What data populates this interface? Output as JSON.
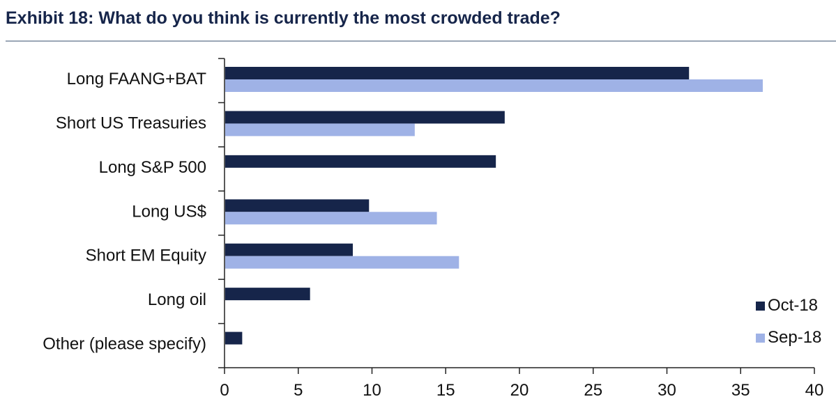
{
  "title": "Exhibit 18: What do you think is currently the most crowded trade?",
  "chart_data": {
    "type": "bar",
    "orientation": "horizontal",
    "categories": [
      "Long FAANG+BAT",
      "Short US Treasuries",
      "Long S&P 500",
      "Long US$",
      "Short EM Equity",
      "Long oil",
      "Other (please specify)"
    ],
    "series": [
      {
        "name": "Oct-18",
        "color": "#16254a",
        "values": [
          31.5,
          19,
          18.4,
          9.8,
          8.7,
          5.8,
          1.2
        ]
      },
      {
        "name": "Sep-18",
        "color": "#9fb2e6",
        "values": [
          36.5,
          12.9,
          null,
          14.4,
          15.9,
          null,
          null
        ]
      }
    ],
    "xlim": [
      0,
      40
    ],
    "xticks": [
      0,
      5,
      10,
      15,
      20,
      25,
      30,
      35,
      40
    ],
    "legend_position": "bottom-right",
    "grid": false
  }
}
